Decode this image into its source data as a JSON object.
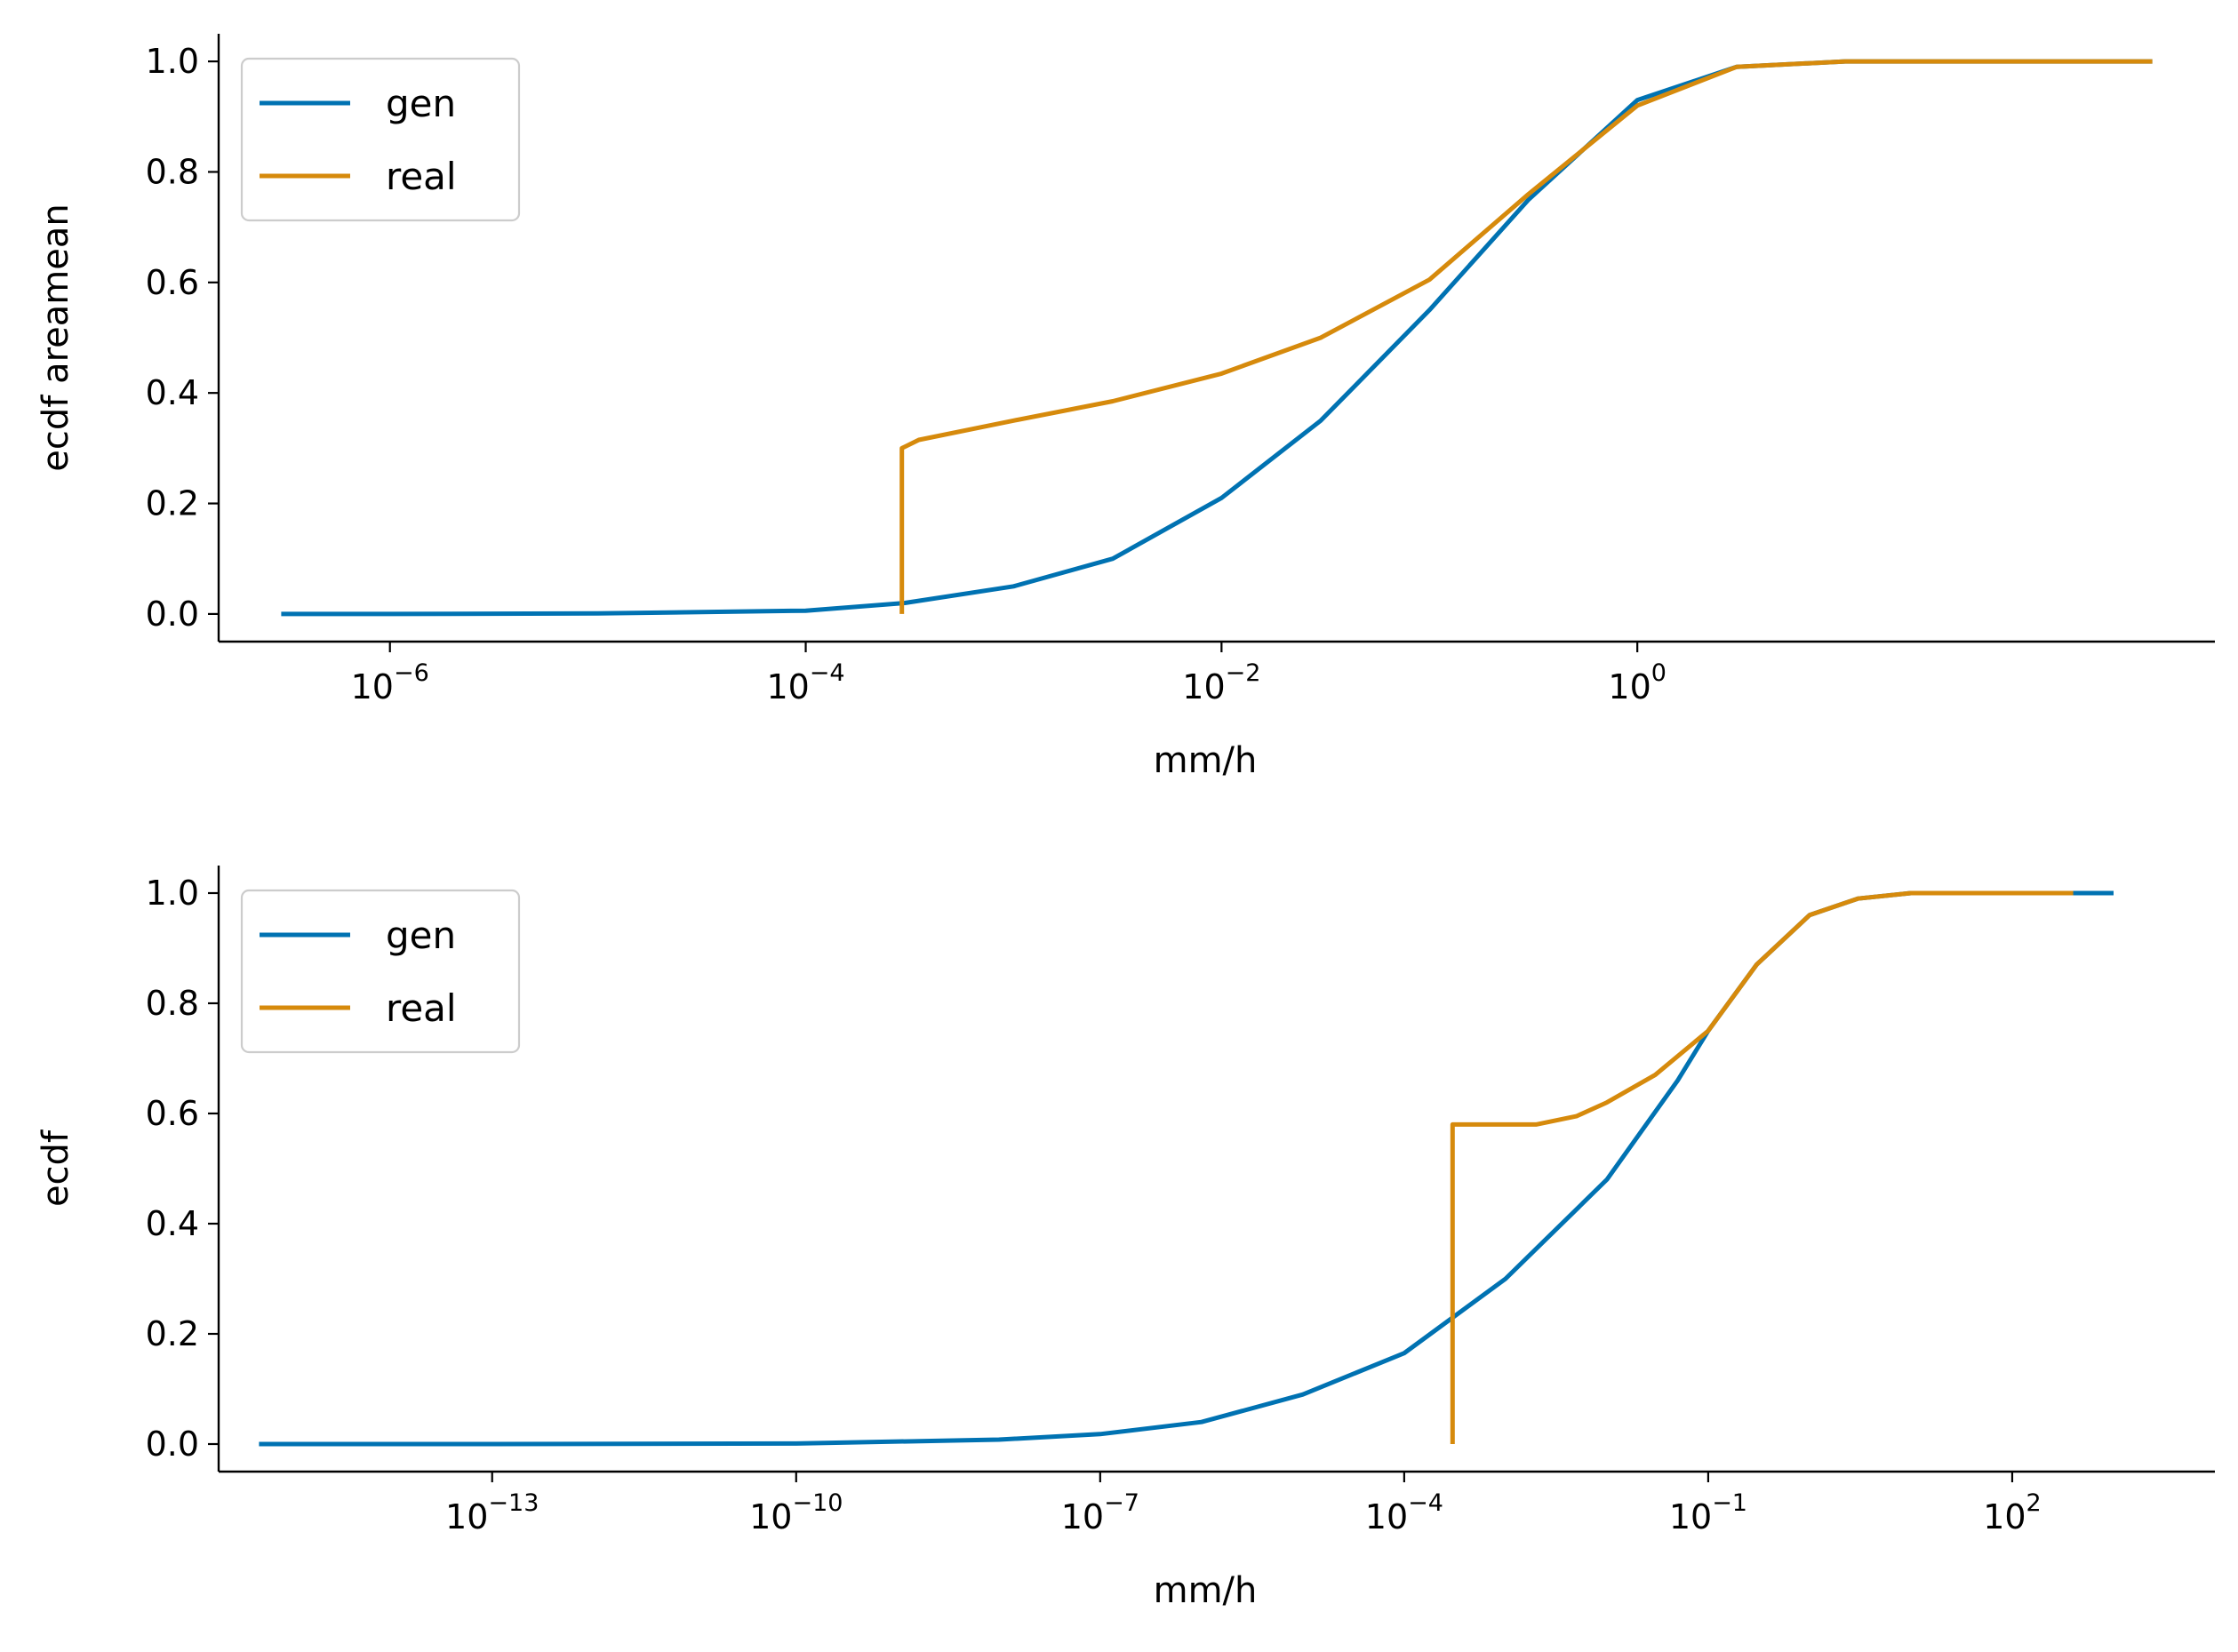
{
  "colors": {
    "gen": "#0072b2",
    "real": "#d68a0c",
    "axis": "#000000",
    "legend_border": "#cccccc"
  },
  "chart_data": [
    {
      "type": "line",
      "xscale": "log",
      "xlabel": "mm/h",
      "ylabel": "ecdf areamean",
      "xlim": [
        1.5e-07,
        600
      ],
      "ylim": [
        -0.05,
        1.05
      ],
      "grid": false,
      "legend": "top-left",
      "x_ticks": [
        {
          "value": 1e-06,
          "base": "10",
          "exp": "−6"
        },
        {
          "value": 0.0001,
          "base": "10",
          "exp": "−4"
        },
        {
          "value": 0.01,
          "base": "10",
          "exp": "−2"
        },
        {
          "value": 1,
          "base": "10",
          "exp": "0"
        }
      ],
      "y_ticks": [
        "0.0",
        "0.2",
        "0.4",
        "0.6",
        "0.8",
        "1.0"
      ],
      "series": [
        {
          "name": "gen",
          "color_key": "gen",
          "points": [
            [
              3e-07,
              0.0
            ],
            [
              1e-06,
              0.0
            ],
            [
              1e-05,
              0.001
            ],
            [
              0.0001,
              0.006
            ],
            [
              0.0003,
              0.02
            ],
            [
              0.001,
              0.05
            ],
            [
              0.003,
              0.1
            ],
            [
              0.01,
              0.21
            ],
            [
              0.03,
              0.35
            ],
            [
              0.1,
              0.55
            ],
            [
              0.3,
              0.75
            ],
            [
              1,
              0.93
            ],
            [
              3,
              0.99
            ],
            [
              10,
              1.0
            ],
            [
              300,
              1.0
            ]
          ]
        },
        {
          "name": "real",
          "color_key": "real",
          "points": [
            [
              0.00029,
              0.0
            ],
            [
              0.00029,
              0.3
            ],
            [
              0.00035,
              0.315
            ],
            [
              0.001,
              0.35
            ],
            [
              0.003,
              0.385
            ],
            [
              0.01,
              0.435
            ],
            [
              0.03,
              0.5
            ],
            [
              0.1,
              0.605
            ],
            [
              0.3,
              0.76
            ],
            [
              1,
              0.92
            ],
            [
              3,
              0.99
            ],
            [
              10,
              1.0
            ],
            [
              300,
              1.0
            ]
          ]
        }
      ]
    },
    {
      "type": "line",
      "xscale": "log",
      "xlabel": "mm/h",
      "ylabel": "ecdf",
      "xlim": [
        2e-16,
        10000.0
      ],
      "ylim": [
        -0.05,
        1.05
      ],
      "grid": false,
      "legend": "top-left",
      "x_ticks": [
        {
          "value": 1e-13,
          "base": "10",
          "exp": "−13"
        },
        {
          "value": 1e-10,
          "base": "10",
          "exp": "−10"
        },
        {
          "value": 1e-07,
          "base": "10",
          "exp": "−7"
        },
        {
          "value": 0.0001,
          "base": "10",
          "exp": "−4"
        },
        {
          "value": 0.1,
          "base": "10",
          "exp": "−1"
        },
        {
          "value": 100,
          "base": "10",
          "exp": "2"
        }
      ],
      "y_ticks": [
        "0.0",
        "0.2",
        "0.4",
        "0.6",
        "0.8",
        "1.0"
      ],
      "series": [
        {
          "name": "gen",
          "color_key": "gen",
          "points": [
            [
              5e-16,
              0.0
            ],
            [
              1e-13,
              0.0
            ],
            [
              1e-10,
              0.001
            ],
            [
              1e-08,
              0.008
            ],
            [
              1e-07,
              0.018
            ],
            [
              1e-06,
              0.04
            ],
            [
              1e-05,
              0.09
            ],
            [
              0.0001,
              0.165
            ],
            [
              0.001,
              0.3
            ],
            [
              0.01,
              0.48
            ],
            [
              0.05,
              0.66
            ],
            [
              0.1,
              0.75
            ],
            [
              0.3,
              0.87
            ],
            [
              1,
              0.96
            ],
            [
              3,
              0.99
            ],
            [
              10,
              1.0
            ],
            [
              1000,
              1.0
            ]
          ]
        },
        {
          "name": "real",
          "color_key": "real",
          "points": [
            [
              0.0003,
              0.0
            ],
            [
              0.0003,
              0.58
            ],
            [
              0.001,
              0.58
            ],
            [
              0.002,
              0.58
            ],
            [
              0.005,
              0.595
            ],
            [
              0.01,
              0.62
            ],
            [
              0.03,
              0.67
            ],
            [
              0.1,
              0.75
            ],
            [
              0.3,
              0.87
            ],
            [
              1,
              0.96
            ],
            [
              3,
              0.99
            ],
            [
              10,
              1.0
            ],
            [
              400,
              1.0
            ]
          ]
        }
      ]
    }
  ]
}
